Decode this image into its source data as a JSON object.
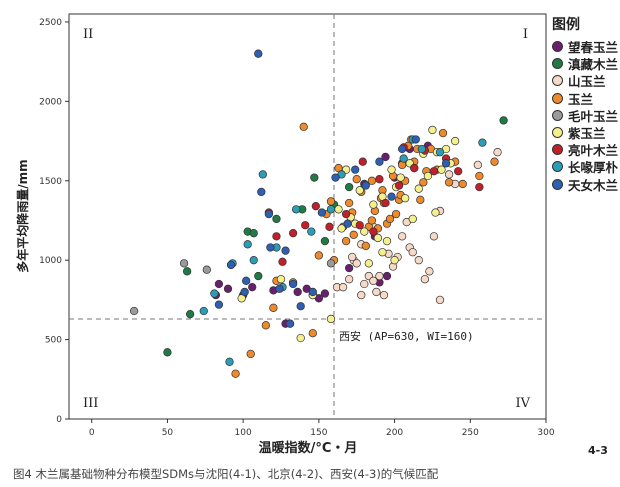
{
  "figure_label": "4-3",
  "caption": "图4  木兰属基础物种分布模型SDMs与沈阳(4-1)、北京(4-2)、西安(4-3)的气候匹配",
  "chart_data": {
    "type": "scatter",
    "title": "",
    "xlabel": "温暖指数/°C・月",
    "ylabel": "多年平均降雨量/mm",
    "xlim": [
      -15,
      300
    ],
    "ylim": [
      0,
      2550
    ],
    "xticks": [
      "0",
      "50",
      "100",
      "150",
      "200",
      "250",
      "300"
    ],
    "yticks": [
      "0",
      "500",
      "1000",
      "1500",
      "2000",
      "2500"
    ],
    "xtick_values": [
      0,
      50,
      100,
      150,
      200,
      250,
      300
    ],
    "ytick_values": [
      0,
      500,
      1000,
      1500,
      2000,
      2500
    ],
    "grid": false,
    "legend_title": "图例",
    "legend_position": "right",
    "quadrants": [
      "I",
      "II",
      "III",
      "IV"
    ],
    "reference_point": {
      "x": 160,
      "y": 630,
      "label": "西安 (AP=630, WI=160)"
    },
    "series": [
      {
        "name": "望春玉兰",
        "color": "#6a1f6e",
        "points": [
          [
            82,
            780
          ],
          [
            84,
            850
          ],
          [
            90,
            820
          ],
          [
            100,
            780
          ],
          [
            106,
            830
          ],
          [
            120,
            810
          ],
          [
            128,
            600
          ],
          [
            136,
            800
          ],
          [
            142,
            820
          ],
          [
            146,
            780
          ],
          [
            150,
            760
          ],
          [
            154,
            790
          ],
          [
            190,
            860
          ],
          [
            195,
            900
          ],
          [
            180,
            1480
          ],
          [
            194,
            1650
          ],
          [
            200,
            1520
          ],
          [
            205,
            1610
          ],
          [
            210,
            1700
          ],
          [
            222,
            1720
          ],
          [
            170,
            950
          ],
          [
            187,
            1150
          ]
        ]
      },
      {
        "name": "滇藏木兰",
        "color": "#1f7a45",
        "points": [
          [
            50,
            420
          ],
          [
            63,
            930
          ],
          [
            65,
            660
          ],
          [
            103,
            1180
          ],
          [
            107,
            1170
          ],
          [
            110,
            900
          ],
          [
            122,
            1260
          ],
          [
            139,
            1320
          ],
          [
            147,
            1520
          ],
          [
            154,
            1120
          ],
          [
            160,
            1350
          ],
          [
            170,
            1460
          ],
          [
            272,
            1880
          ]
        ]
      },
      {
        "name": "山玉兰",
        "color": "#f6d9c6",
        "points": [
          [
            162,
            830
          ],
          [
            166,
            830
          ],
          [
            170,
            880
          ],
          [
            173,
            1000
          ],
          [
            175,
            980
          ],
          [
            178,
            780
          ],
          [
            180,
            850
          ],
          [
            183,
            900
          ],
          [
            186,
            870
          ],
          [
            188,
            800
          ],
          [
            190,
            900
          ],
          [
            193,
            780
          ],
          [
            196,
            1040
          ],
          [
            199,
            960
          ],
          [
            202,
            1020
          ],
          [
            205,
            1150
          ],
          [
            208,
            1240
          ],
          [
            210,
            1080
          ],
          [
            212,
            1050
          ],
          [
            216,
            1000
          ],
          [
            220,
            880
          ],
          [
            223,
            930
          ],
          [
            226,
            1150
          ],
          [
            230,
            1310
          ],
          [
            236,
            1540
          ],
          [
            240,
            1480
          ],
          [
            255,
            1600
          ],
          [
            268,
            1680
          ],
          [
            230,
            750
          ],
          [
            172,
            1020
          ],
          [
            178,
            1100
          ],
          [
            186,
            1210
          ]
        ]
      },
      {
        "name": "玉兰",
        "color": "#ec8a2c",
        "points": [
          [
            95,
            285
          ],
          [
            105,
            410
          ],
          [
            115,
            590
          ],
          [
            120,
            700
          ],
          [
            122,
            870
          ],
          [
            133,
            860
          ],
          [
            140,
            1840
          ],
          [
            146,
            540
          ],
          [
            150,
            1030
          ],
          [
            155,
            1290
          ],
          [
            158,
            1370
          ],
          [
            163,
            1580
          ],
          [
            166,
            1210
          ],
          [
            170,
            1360
          ],
          [
            172,
            1300
          ],
          [
            175,
            1510
          ],
          [
            178,
            1430
          ],
          [
            181,
            1090
          ],
          [
            183,
            1210
          ],
          [
            185,
            1500
          ],
          [
            187,
            1310
          ],
          [
            189,
            1200
          ],
          [
            191,
            1390
          ],
          [
            193,
            1360
          ],
          [
            195,
            1230
          ],
          [
            197,
            1260
          ],
          [
            199,
            1530
          ],
          [
            201,
            1290
          ],
          [
            203,
            1380
          ],
          [
            205,
            1600
          ],
          [
            207,
            1500
          ],
          [
            209,
            1720
          ],
          [
            211,
            1760
          ],
          [
            213,
            1620
          ],
          [
            215,
            1700
          ],
          [
            217,
            1380
          ],
          [
            219,
            1490
          ],
          [
            221,
            1560
          ],
          [
            224,
            1700
          ],
          [
            228,
            1570
          ],
          [
            232,
            1800
          ],
          [
            236,
            1490
          ],
          [
            240,
            1620
          ],
          [
            245,
            1480
          ],
          [
            256,
            1530
          ],
          [
            266,
            1620
          ],
          [
            160,
            1000
          ],
          [
            168,
            1120
          ],
          [
            173,
            1160
          ],
          [
            185,
            1250
          ],
          [
            192,
            1440
          ],
          [
            204,
            1410
          ]
        ]
      },
      {
        "name": "毛叶玉兰",
        "color": "#9a9a9a",
        "points": [
          [
            28,
            680
          ],
          [
            61,
            980
          ],
          [
            76,
            940
          ],
          [
            158,
            980
          ]
        ]
      },
      {
        "name": "紫玉兰",
        "color": "#f5f08e",
        "points": [
          [
            99,
            760
          ],
          [
            125,
            880
          ],
          [
            138,
            510
          ],
          [
            146,
            780
          ],
          [
            158,
            630
          ],
          [
            163,
            1320
          ],
          [
            165,
            1200
          ],
          [
            168,
            1570
          ],
          [
            171,
            1270
          ],
          [
            174,
            1230
          ],
          [
            177,
            1440
          ],
          [
            180,
            1180
          ],
          [
            183,
            980
          ],
          [
            186,
            1350
          ],
          [
            189,
            1140
          ],
          [
            192,
            1400
          ],
          [
            195,
            1120
          ],
          [
            198,
            1570
          ],
          [
            201,
            1460
          ],
          [
            204,
            1520
          ],
          [
            207,
            1390
          ],
          [
            210,
            1610
          ],
          [
            213,
            1580
          ],
          [
            216,
            1450
          ],
          [
            219,
            1670
          ],
          [
            222,
            1530
          ],
          [
            225,
            1820
          ],
          [
            228,
            1680
          ],
          [
            231,
            1570
          ],
          [
            234,
            1700
          ],
          [
            237,
            1610
          ],
          [
            240,
            1750
          ],
          [
            192,
            1050
          ],
          [
            200,
            1000
          ],
          [
            212,
            1260
          ],
          [
            227,
            1300
          ]
        ]
      },
      {
        "name": "亮叶木兰",
        "color": "#c0202a",
        "points": [
          [
            117,
            1300
          ],
          [
            122,
            1150
          ],
          [
            126,
            990
          ],
          [
            133,
            1170
          ],
          [
            141,
            1220
          ],
          [
            148,
            1340
          ],
          [
            157,
            1210
          ],
          [
            168,
            1290
          ],
          [
            177,
            1220
          ],
          [
            186,
            1180
          ],
          [
            194,
            1360
          ],
          [
            203,
            1470
          ],
          [
            206,
            1710
          ],
          [
            213,
            1580
          ],
          [
            220,
            1690
          ],
          [
            226,
            1560
          ],
          [
            234,
            1640
          ],
          [
            242,
            1560
          ],
          [
            256,
            1460
          ],
          [
            179,
            1620
          ],
          [
            190,
            1510
          ]
        ]
      },
      {
        "name": "长喙厚朴",
        "color": "#2b9db5",
        "points": [
          [
            74,
            680
          ],
          [
            81,
            790
          ],
          [
            93,
            980
          ],
          [
            103,
            1100
          ],
          [
            113,
            1540
          ],
          [
            126,
            830
          ],
          [
            135,
            1320
          ],
          [
            145,
            1180
          ],
          [
            158,
            1320
          ],
          [
            165,
            1540
          ],
          [
            206,
            1640
          ],
          [
            212,
            1760
          ],
          [
            218,
            1700
          ],
          [
            230,
            1680
          ],
          [
            258,
            1740
          ],
          [
            91,
            360
          ],
          [
            107,
            1000
          ],
          [
            122,
            1080
          ]
        ]
      },
      {
        "name": "天女木兰",
        "color": "#2e5fb0",
        "points": [
          [
            84,
            720
          ],
          [
            92,
            970
          ],
          [
            102,
            870
          ],
          [
            110,
            2300
          ],
          [
            112,
            1430
          ],
          [
            118,
            1080
          ],
          [
            124,
            820
          ],
          [
            128,
            1060
          ],
          [
            133,
            850
          ],
          [
            138,
            710
          ],
          [
            146,
            800
          ],
          [
            152,
            1300
          ],
          [
            161,
            1520
          ],
          [
            169,
            1230
          ],
          [
            174,
            1570
          ],
          [
            181,
            1470
          ],
          [
            190,
            1620
          ],
          [
            198,
            1400
          ],
          [
            205,
            1700
          ],
          [
            214,
            1760
          ],
          [
            234,
            1610
          ],
          [
            101,
            800
          ],
          [
            117,
            1290
          ],
          [
            131,
            600
          ]
        ]
      }
    ]
  }
}
